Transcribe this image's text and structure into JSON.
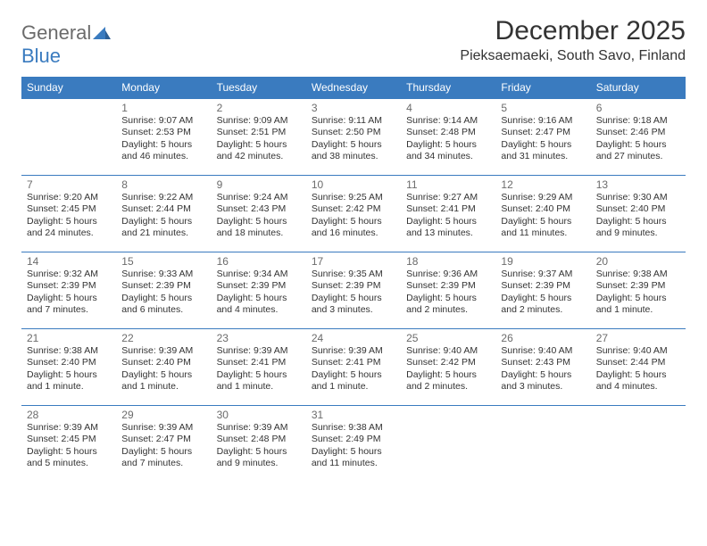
{
  "logo": {
    "word1": "General",
    "word2": "Blue"
  },
  "title": "December 2025",
  "location": "Pieksaemaeki, South Savo, Finland",
  "colors": {
    "header_bg": "#3a7bbf",
    "header_text": "#ffffff",
    "cell_border": "#3a7bbf",
    "daynum": "#6b6b6b",
    "body_text": "#333333",
    "logo_gray": "#6b6b6b",
    "logo_blue": "#3a7bbf",
    "page_bg": "#ffffff"
  },
  "weekdays": [
    "Sunday",
    "Monday",
    "Tuesday",
    "Wednesday",
    "Thursday",
    "Friday",
    "Saturday"
  ],
  "first_weekday_index": 1,
  "days": [
    {
      "n": 1,
      "sunrise": "9:07 AM",
      "sunset": "2:53 PM",
      "daylight": "5 hours and 46 minutes."
    },
    {
      "n": 2,
      "sunrise": "9:09 AM",
      "sunset": "2:51 PM",
      "daylight": "5 hours and 42 minutes."
    },
    {
      "n": 3,
      "sunrise": "9:11 AM",
      "sunset": "2:50 PM",
      "daylight": "5 hours and 38 minutes."
    },
    {
      "n": 4,
      "sunrise": "9:14 AM",
      "sunset": "2:48 PM",
      "daylight": "5 hours and 34 minutes."
    },
    {
      "n": 5,
      "sunrise": "9:16 AM",
      "sunset": "2:47 PM",
      "daylight": "5 hours and 31 minutes."
    },
    {
      "n": 6,
      "sunrise": "9:18 AM",
      "sunset": "2:46 PM",
      "daylight": "5 hours and 27 minutes."
    },
    {
      "n": 7,
      "sunrise": "9:20 AM",
      "sunset": "2:45 PM",
      "daylight": "5 hours and 24 minutes."
    },
    {
      "n": 8,
      "sunrise": "9:22 AM",
      "sunset": "2:44 PM",
      "daylight": "5 hours and 21 minutes."
    },
    {
      "n": 9,
      "sunrise": "9:24 AM",
      "sunset": "2:43 PM",
      "daylight": "5 hours and 18 minutes."
    },
    {
      "n": 10,
      "sunrise": "9:25 AM",
      "sunset": "2:42 PM",
      "daylight": "5 hours and 16 minutes."
    },
    {
      "n": 11,
      "sunrise": "9:27 AM",
      "sunset": "2:41 PM",
      "daylight": "5 hours and 13 minutes."
    },
    {
      "n": 12,
      "sunrise": "9:29 AM",
      "sunset": "2:40 PM",
      "daylight": "5 hours and 11 minutes."
    },
    {
      "n": 13,
      "sunrise": "9:30 AM",
      "sunset": "2:40 PM",
      "daylight": "5 hours and 9 minutes."
    },
    {
      "n": 14,
      "sunrise": "9:32 AM",
      "sunset": "2:39 PM",
      "daylight": "5 hours and 7 minutes."
    },
    {
      "n": 15,
      "sunrise": "9:33 AM",
      "sunset": "2:39 PM",
      "daylight": "5 hours and 6 minutes."
    },
    {
      "n": 16,
      "sunrise": "9:34 AM",
      "sunset": "2:39 PM",
      "daylight": "5 hours and 4 minutes."
    },
    {
      "n": 17,
      "sunrise": "9:35 AM",
      "sunset": "2:39 PM",
      "daylight": "5 hours and 3 minutes."
    },
    {
      "n": 18,
      "sunrise": "9:36 AM",
      "sunset": "2:39 PM",
      "daylight": "5 hours and 2 minutes."
    },
    {
      "n": 19,
      "sunrise": "9:37 AM",
      "sunset": "2:39 PM",
      "daylight": "5 hours and 2 minutes."
    },
    {
      "n": 20,
      "sunrise": "9:38 AM",
      "sunset": "2:39 PM",
      "daylight": "5 hours and 1 minute."
    },
    {
      "n": 21,
      "sunrise": "9:38 AM",
      "sunset": "2:40 PM",
      "daylight": "5 hours and 1 minute."
    },
    {
      "n": 22,
      "sunrise": "9:39 AM",
      "sunset": "2:40 PM",
      "daylight": "5 hours and 1 minute."
    },
    {
      "n": 23,
      "sunrise": "9:39 AM",
      "sunset": "2:41 PM",
      "daylight": "5 hours and 1 minute."
    },
    {
      "n": 24,
      "sunrise": "9:39 AM",
      "sunset": "2:41 PM",
      "daylight": "5 hours and 1 minute."
    },
    {
      "n": 25,
      "sunrise": "9:40 AM",
      "sunset": "2:42 PM",
      "daylight": "5 hours and 2 minutes."
    },
    {
      "n": 26,
      "sunrise": "9:40 AM",
      "sunset": "2:43 PM",
      "daylight": "5 hours and 3 minutes."
    },
    {
      "n": 27,
      "sunrise": "9:40 AM",
      "sunset": "2:44 PM",
      "daylight": "5 hours and 4 minutes."
    },
    {
      "n": 28,
      "sunrise": "9:39 AM",
      "sunset": "2:45 PM",
      "daylight": "5 hours and 5 minutes."
    },
    {
      "n": 29,
      "sunrise": "9:39 AM",
      "sunset": "2:47 PM",
      "daylight": "5 hours and 7 minutes."
    },
    {
      "n": 30,
      "sunrise": "9:39 AM",
      "sunset": "2:48 PM",
      "daylight": "5 hours and 9 minutes."
    },
    {
      "n": 31,
      "sunrise": "9:38 AM",
      "sunset": "2:49 PM",
      "daylight": "5 hours and 11 minutes."
    }
  ],
  "labels": {
    "sunrise": "Sunrise:",
    "sunset": "Sunset:",
    "daylight": "Daylight:"
  }
}
